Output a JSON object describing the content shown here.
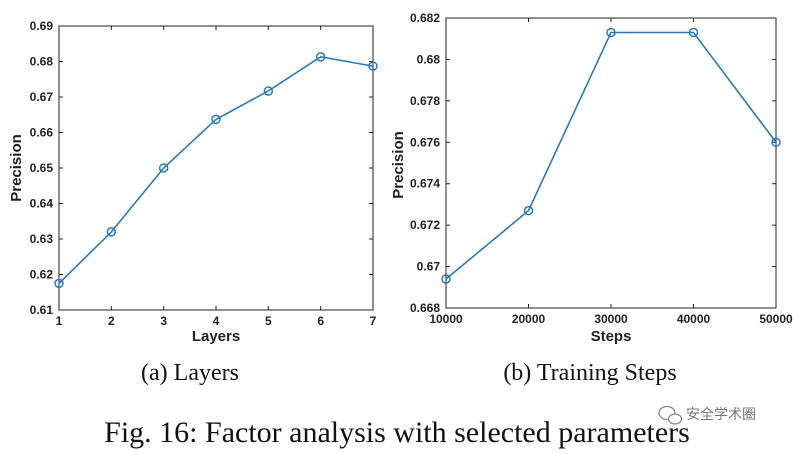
{
  "chart_data": [
    {
      "type": "line",
      "xlabel": "Layers",
      "ylabel": "Precision",
      "x": [
        1,
        2,
        3,
        4,
        5,
        6,
        7
      ],
      "values": [
        0.6175,
        0.632,
        0.65,
        0.6637,
        0.6717,
        0.6813,
        0.6787
      ],
      "xticks": [
        "1",
        "2",
        "3",
        "4",
        "5",
        "6",
        "7"
      ],
      "yticks": [
        "0.61",
        "0.62",
        "0.63",
        "0.64",
        "0.65",
        "0.66",
        "0.67",
        "0.68",
        "0.69"
      ],
      "xlim": [
        1,
        7
      ],
      "ylim": [
        0.61,
        0.69
      ],
      "color": "#2a7ab8",
      "caption": "(a) Layers"
    },
    {
      "type": "line",
      "xlabel": "Steps",
      "ylabel": "Precision",
      "x": [
        10000,
        20000,
        30000,
        40000,
        50000
      ],
      "values": [
        0.6694,
        0.6727,
        0.6813,
        0.6813,
        0.676
      ],
      "xticks": [
        "10000",
        "20000",
        "30000",
        "40000",
        "50000"
      ],
      "yticks": [
        "0.668",
        "0.67",
        "0.672",
        "0.674",
        "0.676",
        "0.678",
        "0.68",
        "0.682"
      ],
      "xlim": [
        10000,
        50000
      ],
      "ylim": [
        0.668,
        0.682
      ],
      "color": "#2a7ab8",
      "caption": "(b) Training Steps"
    }
  ],
  "figure_caption": "Fig. 16: Factor analysis with selected parameters",
  "watermark": "安全学术圈"
}
